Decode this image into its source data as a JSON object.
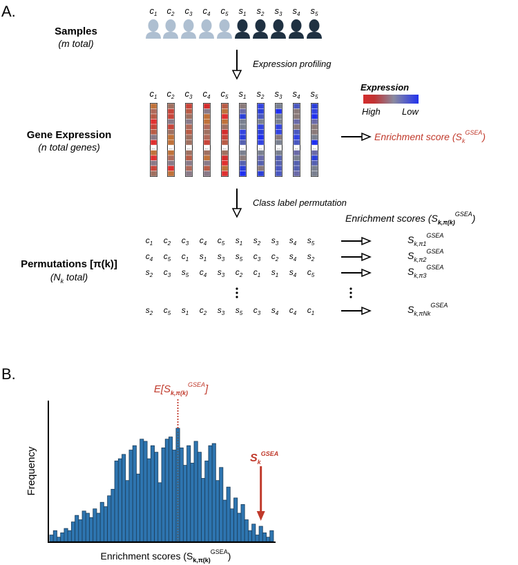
{
  "panel_a": {
    "label": "A.",
    "samples": {
      "title": "Samples",
      "subtitle": "(m total)",
      "columns": [
        {
          "letter": "c",
          "sub": "1",
          "group": "control"
        },
        {
          "letter": "c",
          "sub": "2",
          "group": "control"
        },
        {
          "letter": "c",
          "sub": "3",
          "group": "control"
        },
        {
          "letter": "c",
          "sub": "4",
          "group": "control"
        },
        {
          "letter": "c",
          "sub": "5",
          "group": "control"
        },
        {
          "letter": "s",
          "sub": "1",
          "group": "case"
        },
        {
          "letter": "s",
          "sub": "2",
          "group": "case"
        },
        {
          "letter": "s",
          "sub": "3",
          "group": "case"
        },
        {
          "letter": "s",
          "sub": "4",
          "group": "case"
        },
        {
          "letter": "s",
          "sub": "5",
          "group": "case"
        }
      ]
    },
    "step1": "Expression profiling",
    "gene_expression": {
      "title": "Gene Expression",
      "subtitle": "(n total genes)",
      "ellipsis": "..."
    },
    "legend": {
      "title": "Expression",
      "high": "High",
      "low": "Low"
    },
    "enrichment": {
      "prefix": "Enrichment score (S",
      "sub": "k",
      "sup": "GSEA",
      "suffix": ")"
    },
    "step2": "Class label permutation",
    "permutations": {
      "title": "Permutations [π(k)]",
      "subtitle_pre": "(N",
      "subtitle_sub": "k",
      "subtitle_post": " total)",
      "scores_header": {
        "prefix": "Enrichment scores (S",
        "sub": "k,π(k)",
        "sup": "GSEA",
        "suffix": ")"
      },
      "rows": [
        {
          "cells": [
            [
              "c",
              "1"
            ],
            [
              "c",
              "2"
            ],
            [
              "c",
              "3"
            ],
            [
              "c",
              "4"
            ],
            [
              "c",
              "5"
            ],
            [
              "s",
              "1"
            ],
            [
              "s",
              "2"
            ],
            [
              "s",
              "3"
            ],
            [
              "s",
              "4"
            ],
            [
              "s",
              "5"
            ]
          ],
          "score_sub": "k,π1"
        },
        {
          "cells": [
            [
              "c",
              "4"
            ],
            [
              "c",
              "5"
            ],
            [
              "c",
              "1"
            ],
            [
              "s",
              "1"
            ],
            [
              "s",
              "3"
            ],
            [
              "s",
              "5"
            ],
            [
              "c",
              "3"
            ],
            [
              "c",
              "2"
            ],
            [
              "s",
              "4"
            ],
            [
              "s",
              "2"
            ]
          ],
          "score_sub": "k,π2"
        },
        {
          "cells": [
            [
              "s",
              "2"
            ],
            [
              "c",
              "3"
            ],
            [
              "s",
              "5"
            ],
            [
              "c",
              "4"
            ],
            [
              "s",
              "3"
            ],
            [
              "c",
              "2"
            ],
            [
              "c",
              "1"
            ],
            [
              "s",
              "1"
            ],
            [
              "s",
              "4"
            ],
            [
              "c",
              "5"
            ]
          ],
          "score_sub": "k,π3"
        },
        {
          "cells": [
            [
              "s",
              "2"
            ],
            [
              "c",
              "5"
            ],
            [
              "s",
              "1"
            ],
            [
              "c",
              "2"
            ],
            [
              "s",
              "3"
            ],
            [
              "s",
              "5"
            ],
            [
              "c",
              "3"
            ],
            [
              "s",
              "4"
            ],
            [
              "c",
              "4"
            ],
            [
              "c",
              "1"
            ]
          ],
          "score_sub": "k,πNk"
        }
      ],
      "score_letter": "S",
      "score_sup": "GSEA"
    }
  },
  "panel_b": {
    "label": "B.",
    "ylabel": "Frequency",
    "xlabel": {
      "prefix": "Enrichment scores (S",
      "sub": "k,π(k)",
      "sup": "GSEA",
      "suffix": ")"
    },
    "mean_label": {
      "prefix": "E[S",
      "sub": "k,π(k)",
      "sup": "GSEA",
      "suffix": "]"
    },
    "observed_label": {
      "letter": "S",
      "sub": "k",
      "sup": "GSEA"
    }
  },
  "colors": {
    "control": "#aebfd1",
    "case": "#1f3142",
    "bar": "#2e75b0",
    "accent": "#c0392b",
    "grad_high": "#d42c2c",
    "grad_low": "#2233ee"
  },
  "chart_data": {
    "type": "bar",
    "title": "",
    "xlabel": "Enrichment scores (Sk,π(k)GSEA)",
    "ylabel": "Frequency",
    "values": [
      3,
      5,
      2,
      4,
      6,
      5,
      9,
      12,
      10,
      14,
      13,
      11,
      15,
      13,
      18,
      16,
      21,
      24,
      37,
      38,
      40,
      28,
      42,
      44,
      31,
      47,
      46,
      38,
      44,
      41,
      27,
      43,
      47,
      48,
      42,
      52,
      43,
      35,
      44,
      36,
      46,
      41,
      29,
      37,
      44,
      45,
      28,
      34,
      19,
      25,
      15,
      20,
      13,
      17,
      10,
      5,
      8,
      3,
      7,
      4,
      2,
      5
    ],
    "mean_index": 35,
    "observed_index": 58
  }
}
